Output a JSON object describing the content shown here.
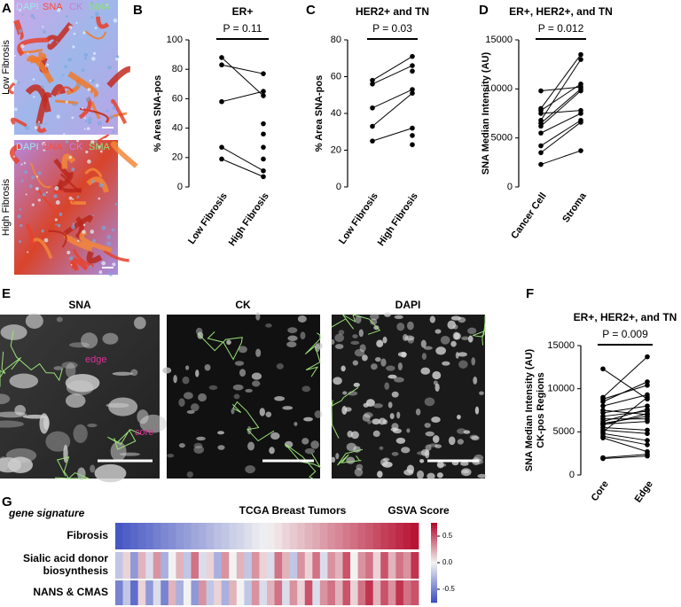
{
  "figure": {
    "panel_labels": [
      "A",
      "B",
      "C",
      "D",
      "E",
      "F",
      "G"
    ],
    "panel_a": {
      "stains": [
        {
          "name": "DAPI",
          "color": "#9fe6ee"
        },
        {
          "name": "SNA",
          "color": "#ff4a3a"
        },
        {
          "name": "CK",
          "color": "#c77dd8"
        },
        {
          "name": "SMA",
          "color": "#8de07a"
        }
      ],
      "rows": [
        "Low Fibrosis",
        "High Fibrosis"
      ]
    },
    "panel_e": {
      "titles": [
        "SNA",
        "CK",
        "DAPI"
      ],
      "annotations": [
        "edge",
        "core"
      ]
    }
  },
  "chart_data": [
    {
      "type": "paired",
      "title": "ER+",
      "annotation": "P = 0.11",
      "y_label": [
        "% Area SNA-pos"
      ],
      "categories": [
        "Low Fibrosis",
        "High Fibrosis"
      ],
      "values_first": [
        88,
        83,
        58,
        27,
        19
      ],
      "values_second": [
        62,
        77,
        65,
        11,
        7
      ],
      "extra_second": [
        43,
        36,
        27,
        19
      ],
      "ylim": [
        0,
        100
      ],
      "yticks": [
        0,
        20,
        40,
        60,
        80,
        100
      ]
    },
    {
      "type": "paired",
      "title": "HER2+ and TN",
      "annotation": "P = 0.03",
      "y_label": [
        "% Area SNA-pos"
      ],
      "categories": [
        "Low Fibrosis",
        "High Fibrosis"
      ],
      "values_first": [
        58,
        56,
        43,
        33,
        25
      ],
      "values_second": [
        71,
        66,
        53,
        51,
        32
      ],
      "extra_second": [
        63,
        28,
        23
      ],
      "ylim": [
        0,
        80
      ],
      "yticks": [
        0,
        20,
        40,
        60,
        80
      ]
    },
    {
      "type": "paired",
      "title": "ER+, HER2+, and TN",
      "annotation": "P = 0.012",
      "y_label": [
        "SNA Median Intensity (AU)"
      ],
      "categories": [
        "Cancer Cell",
        "Stroma"
      ],
      "values_first": [
        9800,
        8000,
        7800,
        7500,
        6800,
        6500,
        6200,
        5500,
        4200,
        3500,
        2300
      ],
      "values_second": [
        10200,
        13500,
        10500,
        7800,
        13000,
        10000,
        9800,
        7500,
        6800,
        6600,
        3700
      ],
      "extra_second": [],
      "ylim": [
        0,
        15000
      ],
      "yticks": [
        0,
        5000,
        10000,
        15000
      ]
    },
    {
      "type": "paired",
      "title": "ER+, HER2+, and TN",
      "annotation": "P = 0.009",
      "y_label": [
        "SNA Median Intensity (AU)",
        "CK-pos Regions"
      ],
      "categories": [
        "Core",
        "Edge"
      ],
      "values_first": [
        12300,
        9000,
        8800,
        8500,
        8000,
        7500,
        7200,
        6800,
        6500,
        6200,
        6000,
        5900,
        5800,
        5500,
        5200,
        5000,
        4800,
        4500,
        4300,
        2000,
        1900
      ],
      "values_second": [
        8800,
        13700,
        10400,
        10800,
        9300,
        7000,
        8000,
        7400,
        6500,
        7600,
        6800,
        6200,
        7100,
        5200,
        4800,
        9000,
        4000,
        3500,
        2700,
        2400,
        2200
      ],
      "extra_second": [],
      "ylim": [
        0,
        15000
      ],
      "yticks": [
        0,
        5000,
        10000,
        15000
      ]
    },
    {
      "type": "heatmap",
      "title": "TCGA Breast Tumors",
      "colorbar_label": "GSVA Score",
      "row_header": "gene signature",
      "colormap": [
        "#3b4cc0",
        "#f2f2f2",
        "#b40426"
      ],
      "clim": [
        -0.75,
        0.75
      ],
      "cticks": [
        0.5,
        {
          "value": 0,
          "label": "0.0"
        },
        -0.5
      ],
      "rows": [
        {
          "label": [
            "Fibrosis"
          ],
          "values": [
            -0.7,
            -0.66,
            -0.63,
            -0.59,
            -0.56,
            -0.52,
            -0.48,
            -0.45,
            -0.41,
            -0.38,
            -0.34,
            -0.31,
            -0.27,
            -0.23,
            -0.2,
            -0.16,
            -0.13,
            -0.09,
            -0.05,
            -0.02,
            0.02,
            0.05,
            0.09,
            0.13,
            0.16,
            0.2,
            0.23,
            0.27,
            0.31,
            0.34,
            0.38,
            0.41,
            0.45,
            0.48,
            0.52,
            0.56,
            0.59,
            0.63,
            0.66,
            0.7
          ]
        },
        {
          "label": [
            "Sialic acid donor",
            "biosynthesis"
          ],
          "values": [
            -0.2,
            0.1,
            -0.4,
            0.2,
            -0.1,
            0.3,
            -0.3,
            0.0,
            0.2,
            -0.2,
            0.4,
            -0.1,
            0.1,
            -0.3,
            0.3,
            0.0,
            0.2,
            -0.2,
            0.3,
            0.1,
            -0.1,
            0.4,
            0.2,
            -0.2,
            0.3,
            0.1,
            0.4,
            -0.1,
            0.3,
            0.2,
            0.5,
            0.0,
            0.3,
            0.4,
            0.1,
            0.5,
            0.2,
            0.4,
            0.3,
            0.6
          ]
        },
        {
          "label": [
            "NANS & CMAS"
          ],
          "values": [
            -0.5,
            -0.2,
            -0.6,
            0.1,
            -0.4,
            -0.1,
            -0.5,
            0.2,
            -0.3,
            0.0,
            -0.4,
            0.3,
            -0.2,
            0.1,
            -0.3,
            0.2,
            0.0,
            -0.2,
            0.3,
            -0.1,
            0.2,
            0.4,
            -0.1,
            0.3,
            0.1,
            0.5,
            -0.1,
            0.3,
            0.4,
            0.2,
            0.5,
            0.1,
            0.4,
            0.6,
            0.2,
            0.5,
            0.3,
            0.6,
            0.4,
            0.5
          ]
        }
      ]
    }
  ]
}
